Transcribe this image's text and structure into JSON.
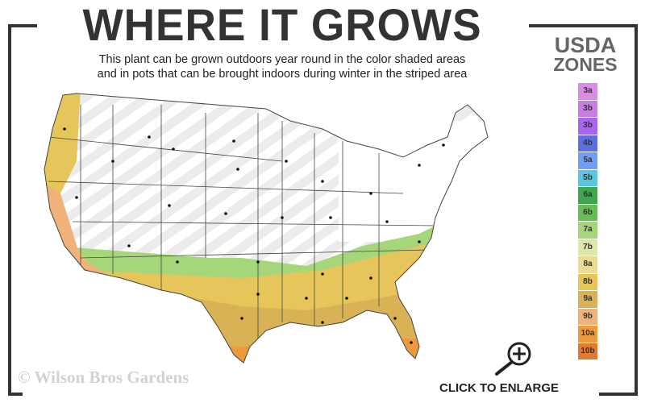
{
  "title": "WHERE IT GROWS",
  "subtitle_line1": "This plant can be grown outdoors year round in the color shaded areas",
  "subtitle_line2": "and in pots that can be brought indoors during winter in the striped area",
  "legend": {
    "heading1": "USDA",
    "heading2": "ZONES",
    "zones": [
      {
        "label": "3a",
        "color": "#d98ce6"
      },
      {
        "label": "3b",
        "color": "#c77ee0"
      },
      {
        "label": "3b",
        "color": "#a766f0"
      },
      {
        "label": "4b",
        "color": "#5b6fe0"
      },
      {
        "label": "5a",
        "color": "#6f9ef5"
      },
      {
        "label": "5b",
        "color": "#5cc6e0"
      },
      {
        "label": "6a",
        "color": "#3fa64f"
      },
      {
        "label": "6b",
        "color": "#66be55"
      },
      {
        "label": "7a",
        "color": "#a6d67a"
      },
      {
        "label": "7b",
        "color": "#dde8a8"
      },
      {
        "label": "8a",
        "color": "#ebdb96"
      },
      {
        "label": "8b",
        "color": "#e6c55a"
      },
      {
        "label": "9a",
        "color": "#d9b255"
      },
      {
        "label": "9b",
        "color": "#f0b27a"
      },
      {
        "label": "10a",
        "color": "#ec9a3c"
      },
      {
        "label": "10b",
        "color": "#e07a30"
      }
    ]
  },
  "watermark": "© Wilson Bros Gardens",
  "enlarge_label": "CLICK TO ENLARGE",
  "icons": {
    "enlarge": "magnifier-plus-icon"
  }
}
